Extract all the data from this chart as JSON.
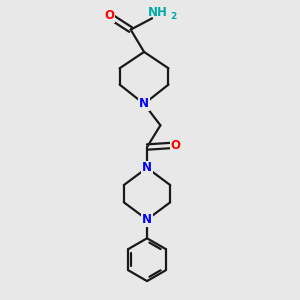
{
  "bg_color": "#e8e8e8",
  "bond_color": "#1a1a1a",
  "N_color": "#0000ff",
  "O_color": "#ff0000",
  "NH2_color": "#00aaaa",
  "line_width": 1.6,
  "fig_size": [
    3.0,
    3.0
  ],
  "dpi": 100,
  "xlim": [
    0,
    10
  ],
  "ylim": [
    0,
    10
  ]
}
